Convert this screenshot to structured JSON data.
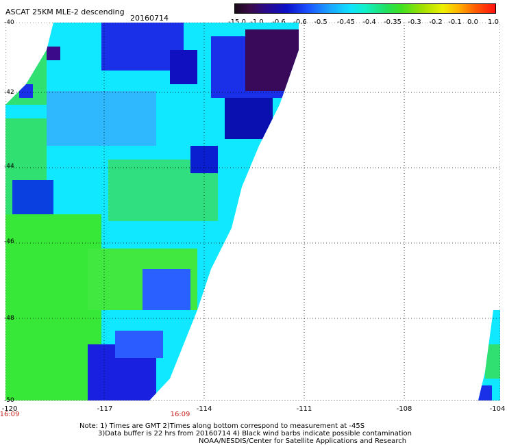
{
  "title": "ASCAT 25KM MLE-2 descending",
  "date": "20160714",
  "colorbar": {
    "labels": [
      "-15.0",
      "-1.0",
      "-0.6",
      "-0.6",
      "-0.5",
      "-0.45",
      "-0.4",
      "-0.35",
      "-0.3",
      "-0.2",
      "-0.1",
      "0.0",
      "1.0"
    ],
    "colors": [
      "#1a0a1a",
      "#3a0a4a",
      "#2a0a8a",
      "#0a10c8",
      "#1a50ff",
      "#1aa0ff",
      "#10e0ff",
      "#10f0c8",
      "#20e060",
      "#40e020",
      "#a0e000",
      "#f0f000",
      "#ff1010"
    ]
  },
  "map": {
    "lon_ticks": [
      "-120",
      "-117",
      "-114",
      "-111",
      "-108",
      "-104"
    ],
    "lat_ticks": [
      "-40",
      "-42",
      "-44",
      "-46",
      "-48",
      "-50"
    ],
    "times": [
      "16:09",
      "16:09"
    ]
  },
  "notes": {
    "line1": "Note: 1) Times are GMT 2)Times along bottom correspond to measurement at -45S",
    "line2": "3)Data buffer is 22 hrs from 20160714 4) Black wind barbs indicate possible contamination",
    "line3": "NOAA/NESDIS/Center for Satellite Applications and Research"
  }
}
